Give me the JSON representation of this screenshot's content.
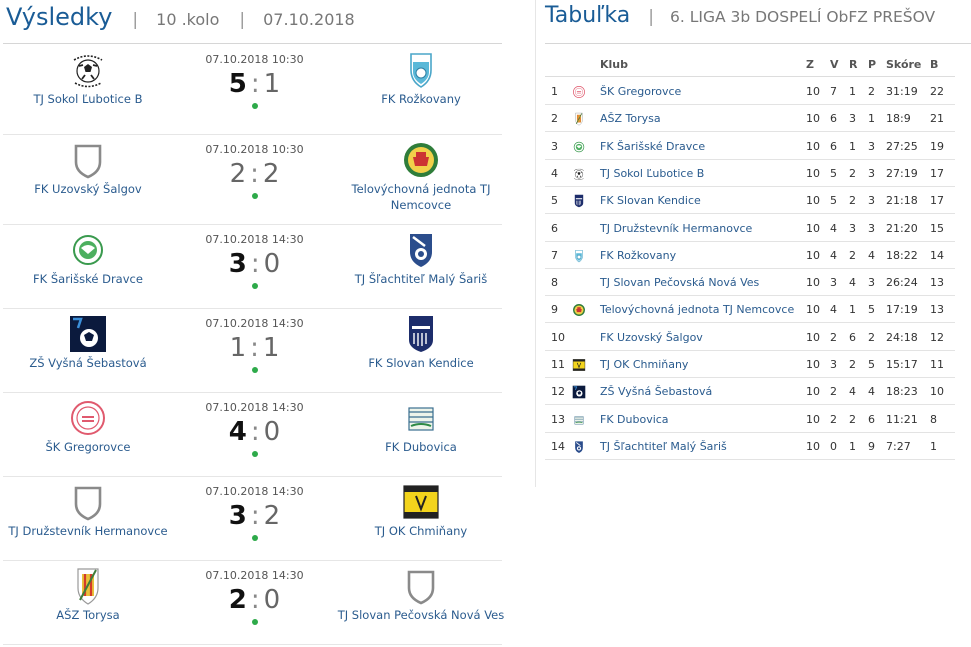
{
  "results": {
    "title": "Výsledky",
    "round": "10 .kolo",
    "date": "07.10.2018",
    "matches": [
      {
        "datetime": "07.10.2018 10:30",
        "home": "TJ Sokol Ľubotice B",
        "away": "FK Rožkovany",
        "home_goals": "5",
        "away_goals": "1",
        "home_logo": "sokol-lubotice-logo",
        "away_logo": "rozkovany-logo",
        "winner": "home"
      },
      {
        "datetime": "07.10.2018 10:30",
        "home": "FK Uzovský Šalgov",
        "away": "Telovýchovná jednota TJ Nemcovce",
        "home_goals": "2",
        "away_goals": "2",
        "home_logo": "shield-placeholder-icon",
        "away_logo": "nemcovce-logo",
        "winner": "draw"
      },
      {
        "datetime": "07.10.2018 14:30",
        "home": "FK Šarišské Dravce",
        "away": "TJ Šľachtiteľ Malý Šariš",
        "home_goals": "3",
        "away_goals": "0",
        "home_logo": "sarisske-dravce-logo",
        "away_logo": "maly-saris-logo",
        "winner": "home"
      },
      {
        "datetime": "07.10.2018 14:30",
        "home": "ZŠ Vyšná Šebastová",
        "away": "FK Slovan Kendice",
        "home_goals": "1",
        "away_goals": "1",
        "home_logo": "vysna-sebastova-logo",
        "away_logo": "kendice-logo",
        "winner": "draw"
      },
      {
        "datetime": "07.10.2018 14:30",
        "home": "ŠK Gregorovce",
        "away": "FK Dubovica",
        "home_goals": "4",
        "away_goals": "0",
        "home_logo": "gregorovce-logo",
        "away_logo": "dubovica-logo",
        "winner": "home"
      },
      {
        "datetime": "07.10.2018 14:30",
        "home": "TJ Družstevník Hermanovce",
        "away": "TJ OK Chmiňany",
        "home_goals": "3",
        "away_goals": "2",
        "home_logo": "shield-placeholder-icon",
        "away_logo": "chminany-logo",
        "winner": "home"
      },
      {
        "datetime": "07.10.2018 14:30",
        "home": "AŠZ Torysa",
        "away": "TJ Slovan Pečovská Nová Ves",
        "home_goals": "2",
        "away_goals": "0",
        "home_logo": "torysa-logo",
        "away_logo": "shield-placeholder-icon",
        "winner": "home"
      }
    ]
  },
  "standings": {
    "title": "Tabuľka",
    "league": "6. LIGA 3b DOSPELÍ ObFZ PREŠOV",
    "columns": {
      "club": "Klub",
      "z": "Z",
      "v": "V",
      "r": "R",
      "p": "P",
      "score": "Skóre",
      "b": "B"
    },
    "rows": [
      {
        "pos": "1",
        "club": "ŠK Gregorovce",
        "z": "10",
        "v": "7",
        "r": "1",
        "p": "2",
        "score": "31:19",
        "b": "22",
        "logo": "gregorovce-logo"
      },
      {
        "pos": "2",
        "club": "AŠZ Torysa",
        "z": "10",
        "v": "6",
        "r": "3",
        "p": "1",
        "score": "18:9",
        "b": "21",
        "logo": "torysa-logo"
      },
      {
        "pos": "3",
        "club": "FK Šarišské Dravce",
        "z": "10",
        "v": "6",
        "r": "1",
        "p": "3",
        "score": "27:25",
        "b": "19",
        "logo": "sarisske-dravce-logo"
      },
      {
        "pos": "4",
        "club": "TJ Sokol Ľubotice B",
        "z": "10",
        "v": "5",
        "r": "2",
        "p": "3",
        "score": "27:19",
        "b": "17",
        "logo": "sokol-lubotice-logo"
      },
      {
        "pos": "5",
        "club": "FK Slovan Kendice",
        "z": "10",
        "v": "5",
        "r": "2",
        "p": "3",
        "score": "21:18",
        "b": "17",
        "logo": "kendice-logo"
      },
      {
        "pos": "6",
        "club": "TJ Družstevník Hermanovce",
        "z": "10",
        "v": "4",
        "r": "3",
        "p": "3",
        "score": "21:20",
        "b": "15",
        "logo": ""
      },
      {
        "pos": "7",
        "club": "FK Rožkovany",
        "z": "10",
        "v": "4",
        "r": "2",
        "p": "4",
        "score": "18:22",
        "b": "14",
        "logo": "rozkovany-logo"
      },
      {
        "pos": "8",
        "club": "TJ Slovan Pečovská Nová Ves",
        "z": "10",
        "v": "3",
        "r": "4",
        "p": "3",
        "score": "26:24",
        "b": "13",
        "logo": ""
      },
      {
        "pos": "9",
        "club": "Telovýchovná jednota TJ Nemcovce",
        "z": "10",
        "v": "4",
        "r": "1",
        "p": "5",
        "score": "17:19",
        "b": "13",
        "logo": "nemcovce-logo"
      },
      {
        "pos": "10",
        "club": "FK Uzovský Šalgov",
        "z": "10",
        "v": "2",
        "r": "6",
        "p": "2",
        "score": "24:18",
        "b": "12",
        "logo": ""
      },
      {
        "pos": "11",
        "club": "TJ OK Chmiňany",
        "z": "10",
        "v": "3",
        "r": "2",
        "p": "5",
        "score": "15:17",
        "b": "11",
        "logo": "chminany-logo"
      },
      {
        "pos": "12",
        "club": "ZŠ Vyšná Šebastová",
        "z": "10",
        "v": "2",
        "r": "4",
        "p": "4",
        "score": "18:23",
        "b": "10",
        "logo": "vysna-sebastova-logo"
      },
      {
        "pos": "13",
        "club": "FK Dubovica",
        "z": "10",
        "v": "2",
        "r": "2",
        "p": "6",
        "score": "11:21",
        "b": "8",
        "logo": "dubovica-logo"
      },
      {
        "pos": "14",
        "club": "TJ Šľachtiteľ Malý Šariš",
        "z": "10",
        "v": "0",
        "r": "1",
        "p": "9",
        "score": "7:27",
        "b": "1",
        "logo": "maly-saris-logo"
      }
    ]
  },
  "colors": {
    "heading": "#1a5c96",
    "link": "#2a5b8e",
    "live_dot": "#2eaa4a"
  }
}
